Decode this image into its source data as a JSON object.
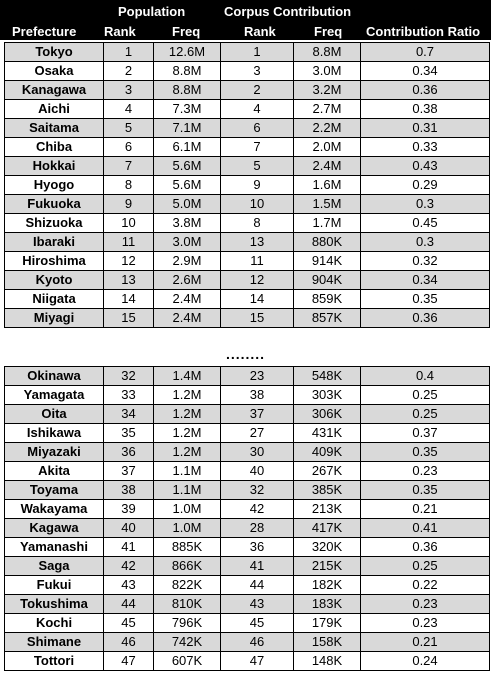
{
  "header": {
    "population": "Population",
    "corpus_contribution": "Corpus Contribution",
    "prefecture": "Prefecture",
    "pop_rank": "Rank",
    "pop_freq": "Freq",
    "corpus_rank": "Rank",
    "corpus_freq": "Freq",
    "ratio": "Contribution Ratio"
  },
  "separator": "........",
  "top_rows": [
    {
      "prefecture": "Tokyo",
      "pop_rank": "1",
      "pop_freq": "12.6M",
      "corpus_rank": "1",
      "corpus_freq": "8.8M",
      "ratio": "0.7"
    },
    {
      "prefecture": "Osaka",
      "pop_rank": "2",
      "pop_freq": "8.8M",
      "corpus_rank": "3",
      "corpus_freq": "3.0M",
      "ratio": "0.34"
    },
    {
      "prefecture": "Kanagawa",
      "pop_rank": "3",
      "pop_freq": "8.8M",
      "corpus_rank": "2",
      "corpus_freq": "3.2M",
      "ratio": "0.36"
    },
    {
      "prefecture": "Aichi",
      "pop_rank": "4",
      "pop_freq": "7.3M",
      "corpus_rank": "4",
      "corpus_freq": "2.7M",
      "ratio": "0.38"
    },
    {
      "prefecture": "Saitama",
      "pop_rank": "5",
      "pop_freq": "7.1M",
      "corpus_rank": "6",
      "corpus_freq": "2.2M",
      "ratio": "0.31"
    },
    {
      "prefecture": "Chiba",
      "pop_rank": "6",
      "pop_freq": "6.1M",
      "corpus_rank": "7",
      "corpus_freq": "2.0M",
      "ratio": "0.33"
    },
    {
      "prefecture": "Hokkai",
      "pop_rank": "7",
      "pop_freq": "5.6M",
      "corpus_rank": "5",
      "corpus_freq": "2.4M",
      "ratio": "0.43"
    },
    {
      "prefecture": "Hyogo",
      "pop_rank": "8",
      "pop_freq": "5.6M",
      "corpus_rank": "9",
      "corpus_freq": "1.6M",
      "ratio": "0.29"
    },
    {
      "prefecture": "Fukuoka",
      "pop_rank": "9",
      "pop_freq": "5.0M",
      "corpus_rank": "10",
      "corpus_freq": "1.5M",
      "ratio": "0.3"
    },
    {
      "prefecture": "Shizuoka",
      "pop_rank": "10",
      "pop_freq": "3.8M",
      "corpus_rank": "8",
      "corpus_freq": "1.7M",
      "ratio": "0.45"
    },
    {
      "prefecture": "Ibaraki",
      "pop_rank": "11",
      "pop_freq": "3.0M",
      "corpus_rank": "13",
      "corpus_freq": "880K",
      "ratio": "0.3"
    },
    {
      "prefecture": "Hiroshima",
      "pop_rank": "12",
      "pop_freq": "2.9M",
      "corpus_rank": "11",
      "corpus_freq": "914K",
      "ratio": "0.32"
    },
    {
      "prefecture": "Kyoto",
      "pop_rank": "13",
      "pop_freq": "2.6M",
      "corpus_rank": "12",
      "corpus_freq": "904K",
      "ratio": "0.34"
    },
    {
      "prefecture": "Niigata",
      "pop_rank": "14",
      "pop_freq": "2.4M",
      "corpus_rank": "14",
      "corpus_freq": "859K",
      "ratio": "0.35"
    },
    {
      "prefecture": "Miyagi",
      "pop_rank": "15",
      "pop_freq": "2.4M",
      "corpus_rank": "15",
      "corpus_freq": "857K",
      "ratio": "0.36"
    }
  ],
  "bottom_rows": [
    {
      "prefecture": "Okinawa",
      "pop_rank": "32",
      "pop_freq": "1.4M",
      "corpus_rank": "23",
      "corpus_freq": "548K",
      "ratio": "0.4"
    },
    {
      "prefecture": "Yamagata",
      "pop_rank": "33",
      "pop_freq": "1.2M",
      "corpus_rank": "38",
      "corpus_freq": "303K",
      "ratio": "0.25"
    },
    {
      "prefecture": "Oita",
      "pop_rank": "34",
      "pop_freq": "1.2M",
      "corpus_rank": "37",
      "corpus_freq": "306K",
      "ratio": "0.25"
    },
    {
      "prefecture": "Ishikawa",
      "pop_rank": "35",
      "pop_freq": "1.2M",
      "corpus_rank": "27",
      "corpus_freq": "431K",
      "ratio": "0.37"
    },
    {
      "prefecture": "Miyazaki",
      "pop_rank": "36",
      "pop_freq": "1.2M",
      "corpus_rank": "30",
      "corpus_freq": "409K",
      "ratio": "0.35"
    },
    {
      "prefecture": "Akita",
      "pop_rank": "37",
      "pop_freq": "1.1M",
      "corpus_rank": "40",
      "corpus_freq": "267K",
      "ratio": "0.23"
    },
    {
      "prefecture": "Toyama",
      "pop_rank": "38",
      "pop_freq": "1.1M",
      "corpus_rank": "32",
      "corpus_freq": "385K",
      "ratio": "0.35"
    },
    {
      "prefecture": "Wakayama",
      "pop_rank": "39",
      "pop_freq": "1.0M",
      "corpus_rank": "42",
      "corpus_freq": "213K",
      "ratio": "0.21"
    },
    {
      "prefecture": "Kagawa",
      "pop_rank": "40",
      "pop_freq": "1.0M",
      "corpus_rank": "28",
      "corpus_freq": "417K",
      "ratio": "0.41"
    },
    {
      "prefecture": "Yamanashi",
      "pop_rank": "41",
      "pop_freq": "885K",
      "corpus_rank": "36",
      "corpus_freq": "320K",
      "ratio": "0.36"
    },
    {
      "prefecture": "Saga",
      "pop_rank": "42",
      "pop_freq": "866K",
      "corpus_rank": "41",
      "corpus_freq": "215K",
      "ratio": "0.25"
    },
    {
      "prefecture": "Fukui",
      "pop_rank": "43",
      "pop_freq": "822K",
      "corpus_rank": "44",
      "corpus_freq": "182K",
      "ratio": "0.22"
    },
    {
      "prefecture": "Tokushima",
      "pop_rank": "44",
      "pop_freq": "810K",
      "corpus_rank": "43",
      "corpus_freq": "183K",
      "ratio": "0.23"
    },
    {
      "prefecture": "Kochi",
      "pop_rank": "45",
      "pop_freq": "796K",
      "corpus_rank": "45",
      "corpus_freq": "179K",
      "ratio": "0.23"
    },
    {
      "prefecture": "Shimane",
      "pop_rank": "46",
      "pop_freq": "742K",
      "corpus_rank": "46",
      "corpus_freq": "158K",
      "ratio": "0.21"
    },
    {
      "prefecture": "Tottori",
      "pop_rank": "47",
      "pop_freq": "607K",
      "corpus_rank": "47",
      "corpus_freq": "148K",
      "ratio": "0.24"
    }
  ]
}
